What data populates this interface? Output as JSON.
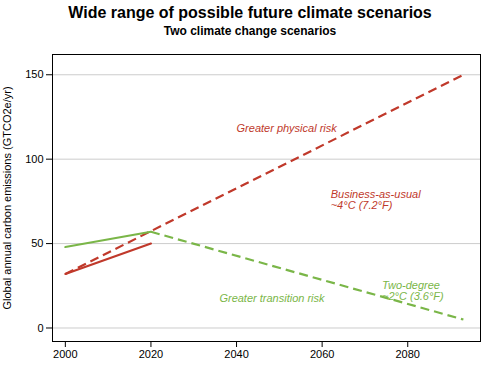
{
  "chart_data": {
    "type": "line",
    "title": "Wide range of possible future climate scenarios",
    "subtitle": "Two climate change scenarios",
    "ylabel": "Global annual carbon emissions (GTCO2e/yr)",
    "xlim": [
      1997,
      2097
    ],
    "ylim": [
      -8,
      162
    ],
    "xticks": [
      2000,
      2020,
      2040,
      2060,
      2080
    ],
    "yticks": [
      0,
      50,
      100,
      150
    ],
    "grid": "y",
    "series": [
      {
        "color": "#c0392b",
        "line_style": "dashed",
        "x": [
          2000,
          2093
        ],
        "values": [
          32,
          150
        ]
      },
      {
        "color": "#c0392b",
        "line_style": "solid",
        "x": [
          2000,
          2020
        ],
        "values": [
          32,
          50
        ]
      },
      {
        "color": "#7ab648",
        "line_style": "solid",
        "x": [
          2000,
          2020
        ],
        "values": [
          48,
          57
        ]
      },
      {
        "color": "#7ab648",
        "line_style": "dashed",
        "x": [
          2020,
          2093
        ],
        "values": [
          57,
          5
        ]
      }
    ],
    "annotations": [
      {
        "text": "Greater physical risk",
        "x": 2040,
        "y": 116,
        "color": "#c0392b"
      },
      {
        "text": "Business-as-usual\n~4°C (7.2°F)",
        "x": 2062,
        "y": 76,
        "color": "#c0392b"
      },
      {
        "text": "Two-degree\n~2°C (3.6°F)",
        "x": 2074,
        "y": 22,
        "color": "#7ab648"
      },
      {
        "text": "Greater transition risk",
        "x": 2036,
        "y": 20,
        "color": "#7ab648"
      }
    ]
  }
}
